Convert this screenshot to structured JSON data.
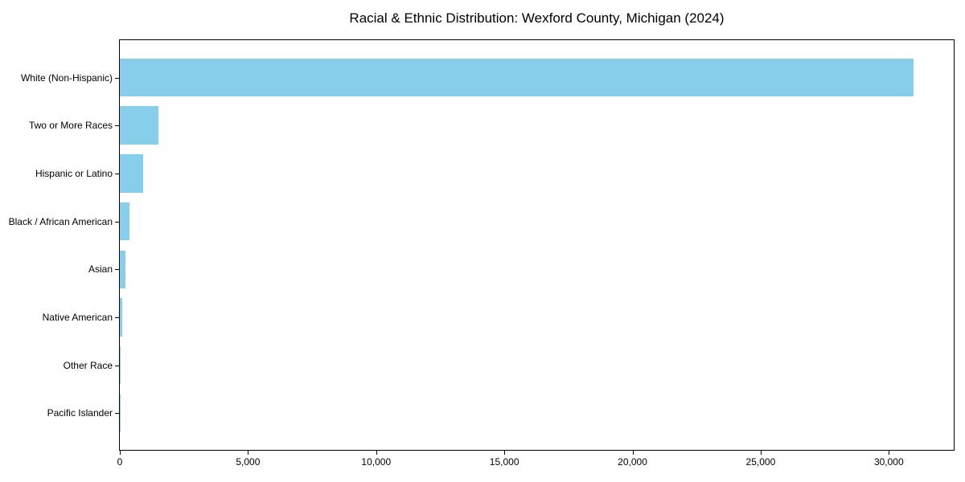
{
  "chart_data": {
    "type": "bar",
    "orientation": "horizontal",
    "title": "Racial & Ethnic Distribution: Wexford County, Michigan (2024)",
    "categories": [
      "White (Non-Hispanic)",
      "Two or More Races",
      "Hispanic or Latino",
      "Black / African American",
      "Asian",
      "Native American",
      "Other Race",
      "Pacific Islander"
    ],
    "values": [
      30950,
      1500,
      910,
      365,
      220,
      100,
      25,
      10
    ],
    "xlabel": "",
    "ylabel": "",
    "xlim": [
      0,
      32560
    ],
    "x_ticks": [
      0,
      5000,
      10000,
      15000,
      20000,
      25000,
      30000
    ],
    "x_tick_labels": [
      "0",
      "5,000",
      "10,000",
      "15,000",
      "20,000",
      "25,000",
      "30,000"
    ],
    "bar_color": "#87CEEB",
    "axis_color": "#000000",
    "text_color": "#000000",
    "grid": false,
    "legend": "none"
  }
}
